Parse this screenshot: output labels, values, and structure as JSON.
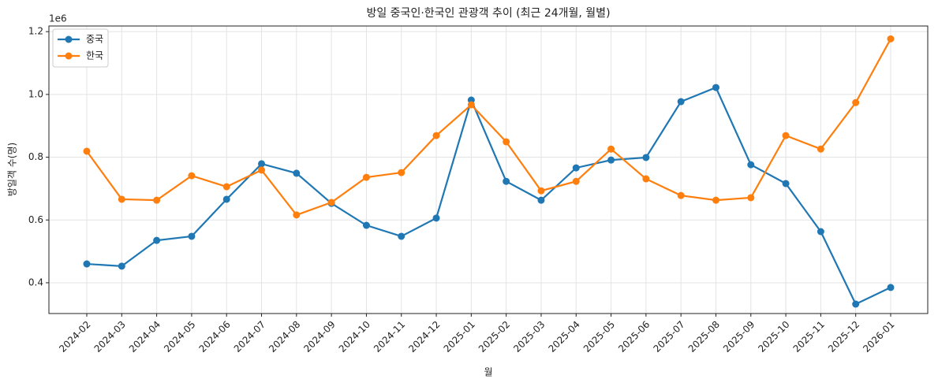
{
  "chart_data": {
    "type": "line",
    "title": "방일 중국인·한국인 관광객 추이 (최근 24개월, 월별)",
    "x_label": "월",
    "y_label": "방일객 수(명)",
    "y_offset_label": "1e6",
    "categories": [
      "2024-02",
      "2024-03",
      "2024-04",
      "2024-05",
      "2024-06",
      "2024-07",
      "2024-08",
      "2024-09",
      "2024-10",
      "2024-11",
      "2024-12",
      "2025-01",
      "2025-02",
      "2025-03",
      "2025-04",
      "2025-05",
      "2025-06",
      "2025-07",
      "2025-08",
      "2025-09",
      "2025-10",
      "2025-11",
      "2025-12",
      "2026-01"
    ],
    "series": [
      {
        "name": "중국",
        "color": "#1f77b4",
        "values": [
          0.46,
          0.453,
          0.535,
          0.548,
          0.666,
          0.779,
          0.749,
          0.653,
          0.583,
          0.548,
          0.606,
          0.982,
          0.723,
          0.663,
          0.766,
          0.791,
          0.799,
          0.977,
          1.022,
          0.776,
          0.716,
          0.563,
          0.332,
          0.385
        ]
      },
      {
        "name": "한국",
        "color": "#ff7f0e",
        "values": [
          0.819,
          0.666,
          0.663,
          0.741,
          0.706,
          0.759,
          0.616,
          0.656,
          0.736,
          0.751,
          0.869,
          0.967,
          0.849,
          0.693,
          0.723,
          0.826,
          0.731,
          0.678,
          0.663,
          0.671,
          0.869,
          0.826,
          0.974,
          1.177
        ]
      }
    ],
    "ylim": [
      0.302,
      1.218
    ],
    "yticks": [
      0.4,
      0.6,
      0.8,
      {
        "value": 1,
        "label": "1.0"
      },
      1.2
    ],
    "grid": true,
    "legend": "upper left"
  }
}
